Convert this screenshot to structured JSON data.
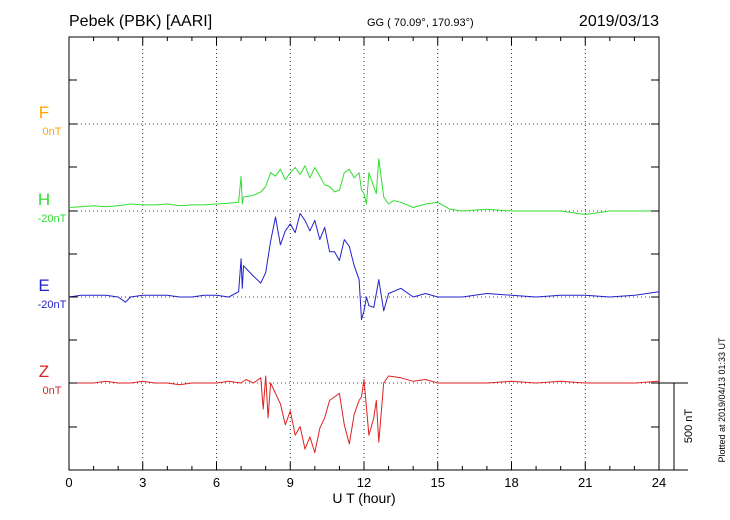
{
  "header": {
    "station": "Pebek (PBK)  [AARI]",
    "coords": "GG ( 70.09°, 170.93°)",
    "date": "2019/03/13"
  },
  "side_note": "Plotted at 2019/04/13 01:33 UT",
  "chart_data": {
    "type": "line",
    "xlabel": "U T (hour)",
    "xlim": [
      0,
      24
    ],
    "xticks": [
      "0",
      "3",
      "6",
      "9",
      "12",
      "15",
      "18",
      "21",
      "24"
    ],
    "scale_label": "500 nT",
    "series": [
      {
        "name": "F",
        "offset_label": "0nT",
        "color": "#ffa500",
        "baseline_nt": 0,
        "has_data": false,
        "x": [],
        "y": []
      },
      {
        "name": "H",
        "offset_label": "-20nT",
        "color": "#33dd33",
        "baseline_nt": -20,
        "has_data": true,
        "x": [
          0,
          0.5,
          1,
          1.5,
          2,
          2.5,
          3,
          3.5,
          4,
          4.5,
          5,
          5.5,
          6,
          6.5,
          6.9,
          7,
          7.05,
          7.1,
          7.5,
          7.8,
          8,
          8.2,
          8.4,
          8.6,
          8.8,
          9,
          9.2,
          9.4,
          9.6,
          9.8,
          10,
          10.2,
          10.4,
          10.6,
          10.8,
          11,
          11.2,
          11.4,
          11.6,
          11.8,
          11.9,
          12,
          12.1,
          12.2,
          12.4,
          12.5,
          12.6,
          12.8,
          13,
          13.2,
          13.5,
          14,
          14.5,
          15,
          15.5,
          16,
          17,
          18,
          19,
          20,
          21,
          22,
          23,
          24
        ],
        "y": [
          0,
          5,
          10,
          5,
          10,
          20,
          15,
          15,
          20,
          10,
          15,
          15,
          20,
          25,
          30,
          180,
          20,
          60,
          70,
          90,
          120,
          200,
          180,
          220,
          160,
          200,
          230,
          190,
          240,
          170,
          230,
          180,
          130,
          120,
          90,
          100,
          200,
          220,
          170,
          200,
          100,
          80,
          20,
          200,
          120,
          80,
          280,
          60,
          20,
          40,
          30,
          0,
          20,
          30,
          -10,
          -20,
          -10,
          -20,
          -20,
          -20,
          -40,
          -20,
          -20,
          -20
        ]
      },
      {
        "name": "E",
        "offset_label": "-20nT",
        "color": "#2222cc",
        "baseline_nt": -20,
        "has_data": true,
        "x": [
          0,
          0.5,
          1,
          1.5,
          2,
          2.3,
          2.5,
          3,
          3.5,
          4,
          4.5,
          5,
          5.5,
          6,
          6.5,
          6.9,
          7,
          7.05,
          7.1,
          7.5,
          7.8,
          8,
          8.2,
          8.4,
          8.6,
          8.8,
          9,
          9.2,
          9.4,
          9.6,
          9.8,
          10,
          10.2,
          10.4,
          10.6,
          10.8,
          11,
          11.2,
          11.4,
          11.6,
          11.8,
          11.9,
          12,
          12.1,
          12.2,
          12.4,
          12.6,
          12.8,
          13,
          13.5,
          14,
          14.5,
          15,
          16,
          17,
          18,
          19,
          20,
          21,
          22,
          23,
          24
        ],
        "y": [
          -20,
          -10,
          -10,
          -10,
          -20,
          -50,
          -20,
          -10,
          -10,
          -10,
          -20,
          -20,
          -10,
          -10,
          -20,
          10,
          200,
          30,
          160,
          100,
          60,
          120,
          300,
          440,
          280,
          360,
          400,
          350,
          460,
          420,
          360,
          420,
          310,
          380,
          240,
          240,
          190,
          310,
          270,
          160,
          80,
          -150,
          -100,
          -20,
          -70,
          -80,
          80,
          -100,
          0,
          30,
          -20,
          0,
          -20,
          -20,
          0,
          -10,
          -20,
          -10,
          -10,
          -20,
          -10,
          10
        ]
      },
      {
        "name": "Z",
        "offset_label": "0nT",
        "color": "#dd2222",
        "baseline_nt": 0,
        "has_data": true,
        "x": [
          0,
          0.5,
          1,
          1.5,
          2,
          2.5,
          3,
          3.5,
          4,
          4.5,
          5,
          5.5,
          6,
          6.5,
          7,
          7.2,
          7.5,
          7.8,
          7.9,
          8,
          8.1,
          8.2,
          8.4,
          8.6,
          8.8,
          9,
          9.2,
          9.4,
          9.6,
          9.8,
          10,
          10.2,
          10.4,
          10.6,
          10.8,
          11,
          11.2,
          11.4,
          11.6,
          11.8,
          11.9,
          12,
          12.2,
          12.4,
          12.5,
          12.6,
          12.8,
          13,
          13.5,
          14,
          14.5,
          15,
          16,
          17,
          18,
          19,
          20,
          21,
          22,
          23,
          24
        ],
        "y": [
          0,
          0,
          0,
          10,
          0,
          0,
          10,
          0,
          0,
          -10,
          0,
          0,
          0,
          10,
          0,
          20,
          0,
          30,
          -150,
          40,
          -200,
          0,
          -60,
          -120,
          -240,
          -160,
          -300,
          -250,
          -380,
          -310,
          -400,
          -260,
          -200,
          -100,
          -80,
          -60,
          -240,
          -350,
          -180,
          -100,
          -80,
          20,
          -300,
          -200,
          -100,
          -340,
          0,
          40,
          30,
          10,
          20,
          0,
          0,
          0,
          10,
          0,
          10,
          0,
          0,
          0,
          10
        ]
      }
    ]
  }
}
